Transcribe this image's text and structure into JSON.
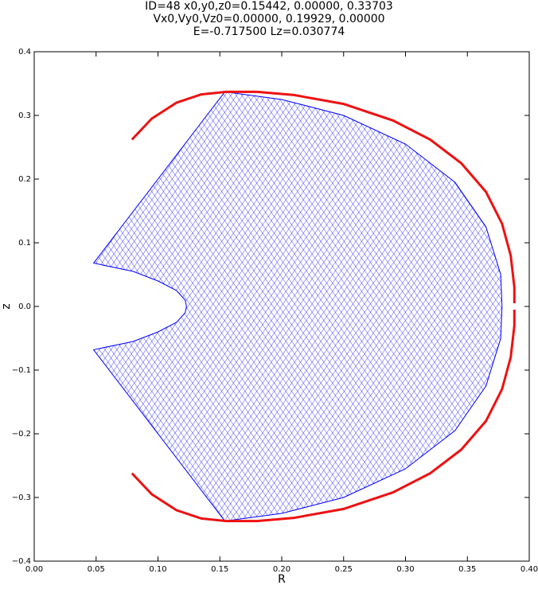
{
  "chart_data": {
    "type": "line",
    "title_lines": [
      "ID=48      x0,y0,z0=0.15442, 0.00000, 0.33703",
      "Vx0,Vy0,Vz0=0.00000, 0.19929, 0.00000",
      "E=-0.717500    Lz=0.030774"
    ],
    "x_label": "R",
    "y_label": "z",
    "xlim": [
      0,
      0.4
    ],
    "ylim": [
      -0.4,
      0.4
    ],
    "xticks": [
      {
        "value": 0,
        "label": "0.00"
      },
      {
        "value": 0.05,
        "label": "0.05"
      },
      {
        "value": 0.1,
        "label": "0.10"
      },
      {
        "value": 0.15,
        "label": "0.15"
      },
      {
        "value": 0.2,
        "label": "0.20"
      },
      {
        "value": 0.25,
        "label": "0.25"
      },
      {
        "value": 0.3,
        "label": "0.30"
      },
      {
        "value": 0.35,
        "label": "0.35"
      },
      {
        "value": 0.4,
        "label": "0.40"
      }
    ],
    "yticks": [
      {
        "value": -0.4,
        "label": "−0.4"
      },
      {
        "value": -0.3,
        "label": "−0.3"
      },
      {
        "value": -0.2,
        "label": "−0.2"
      },
      {
        "value": -0.1,
        "label": "−0.1"
      },
      {
        "value": 0,
        "label": "0.0"
      },
      0.1,
      0.2,
      0.3,
      0.4
    ],
    "series": [
      {
        "color": "#0000ff",
        "fill": true,
        "x": [
          0.154,
          0.048,
          0.08,
          0.1,
          0.115,
          0.122,
          0.123,
          0.122,
          0.115,
          0.1,
          0.08,
          0.048,
          0.154,
          0.2,
          0.25,
          0.3,
          0.34,
          0.365,
          0.377,
          0.378,
          0.377,
          0.365,
          0.34,
          0.3,
          0.25,
          0.2,
          0.154
        ],
        "values": [
          0.337,
          0.068,
          0.055,
          0.04,
          0.025,
          0.01,
          0,
          -0.01,
          -0.025,
          -0.04,
          -0.055,
          -0.068,
          -0.337,
          -0.325,
          -0.3,
          -0.255,
          -0.195,
          -0.125,
          -0.05,
          0,
          0.05,
          0.125,
          0.195,
          0.255,
          0.3,
          0.325,
          0.337
        ]
      },
      {
        "color": "#ee1111",
        "fill": false,
        "x": [
          0.079,
          0.095,
          0.115,
          0.135,
          0.155,
          0.18,
          0.21,
          0.25,
          0.29,
          0.32,
          0.345,
          0.365,
          0.378,
          0.385,
          0.388,
          0.388,
          null,
          0.388,
          0.388,
          0.385,
          0.378,
          0.365,
          0.345,
          0.32,
          0.29,
          0.25,
          0.21,
          0.18,
          0.155,
          0.135,
          0.115,
          0.095,
          0.079
        ],
        "values": [
          0.262,
          0.295,
          0.32,
          0.333,
          0.337,
          0.337,
          0.332,
          0.318,
          0.292,
          0.262,
          0.225,
          0.18,
          0.13,
          0.08,
          0.03,
          0.005,
          null,
          -0.005,
          -0.03,
          -0.08,
          -0.13,
          -0.18,
          -0.225,
          -0.262,
          -0.292,
          -0.318,
          -0.332,
          -0.337,
          -0.337,
          -0.333,
          -0.32,
          -0.295,
          -0.262
        ]
      }
    ]
  }
}
